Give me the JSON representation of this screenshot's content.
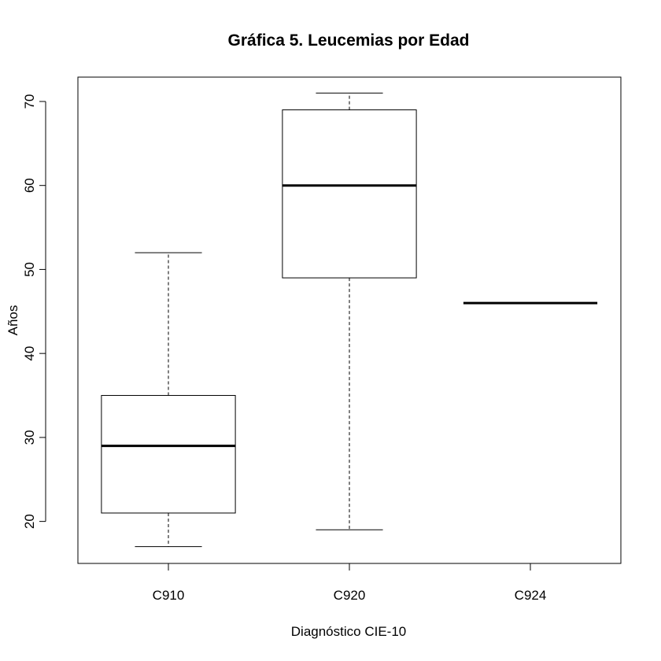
{
  "chart_data": {
    "type": "boxplot",
    "title": "Gráfica 5. Leucemias por Edad",
    "xlabel": "Diagnóstico CIE-10",
    "ylabel": "Años",
    "ylim": [
      15,
      72.9
    ],
    "yticks": [
      20,
      30,
      40,
      50,
      60,
      70
    ],
    "grid": false,
    "categories": [
      "C910",
      "C920",
      "C924"
    ],
    "boxes": [
      {
        "category": "C910",
        "whisker_low": 17,
        "q1": 21,
        "median": 29,
        "q3": 35,
        "whisker_high": 52
      },
      {
        "category": "C920",
        "whisker_low": 19,
        "q1": 49,
        "median": 60,
        "q3": 69,
        "whisker_high": 71
      },
      {
        "category": "C924",
        "whisker_low": 46,
        "q1": 46,
        "median": 46,
        "q3": 46,
        "whisker_high": 46
      }
    ]
  }
}
